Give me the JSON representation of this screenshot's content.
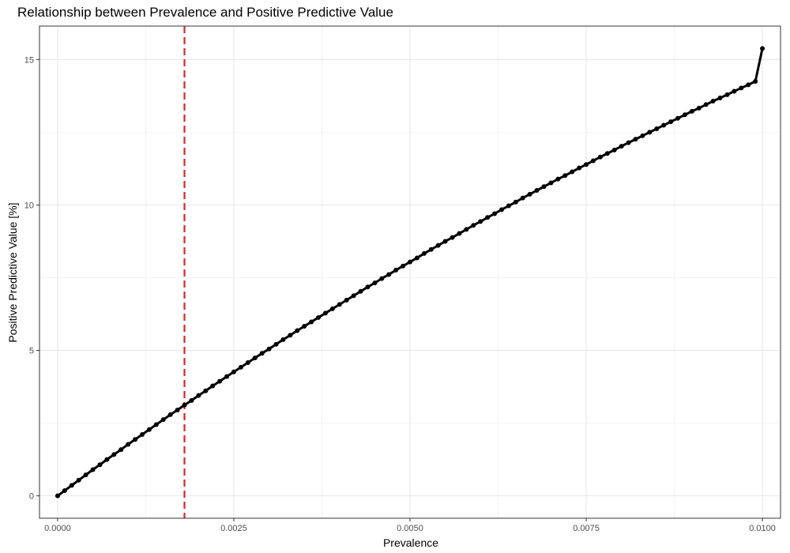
{
  "chart_data": {
    "type": "line",
    "title": "Relationship between Prevalence and Positive Predictive Value",
    "xlabel": "Prevalence",
    "ylabel": "Positive Predictive Value [%]",
    "xlim": [
      0,
      0.01
    ],
    "ylim": [
      0,
      15.4
    ],
    "x_ticks": [
      0,
      0.0025,
      0.005,
      0.0075,
      0.01
    ],
    "x_tick_labels": [
      "0.0000",
      "0.0025",
      "0.0050",
      "0.0075",
      "0.0100"
    ],
    "y_ticks": [
      0,
      5,
      10,
      15
    ],
    "y_tick_labels": [
      "0",
      "5",
      "10",
      "15"
    ],
    "grid": true,
    "theme": "black-and-white",
    "series": [
      {
        "color": "#000000",
        "markers": true,
        "points": [
          [
            0.0,
            0.0
          ],
          [
            0.0001,
            0.18
          ],
          [
            0.0002,
            0.36
          ],
          [
            0.0003,
            0.54
          ],
          [
            0.0004,
            0.72
          ],
          [
            0.0005,
            0.9
          ],
          [
            0.0006,
            1.07
          ],
          [
            0.0007,
            1.25
          ],
          [
            0.0008,
            1.42
          ],
          [
            0.0009,
            1.59
          ],
          [
            0.001,
            1.77
          ],
          [
            0.0011,
            1.94
          ],
          [
            0.0012,
            2.11
          ],
          [
            0.0013,
            2.28
          ],
          [
            0.0014,
            2.45
          ],
          [
            0.0015,
            2.62
          ],
          [
            0.0016,
            2.79
          ],
          [
            0.0017,
            2.95
          ],
          [
            0.0018,
            3.12
          ],
          [
            0.0019,
            3.28
          ],
          [
            0.002,
            3.45
          ],
          [
            0.0021,
            3.61
          ],
          [
            0.0022,
            3.78
          ],
          [
            0.0023,
            3.94
          ],
          [
            0.0024,
            4.1
          ],
          [
            0.0025,
            4.26
          ],
          [
            0.0026,
            4.42
          ],
          [
            0.0027,
            4.58
          ],
          [
            0.0028,
            4.74
          ],
          [
            0.0029,
            4.9
          ],
          [
            0.003,
            5.05
          ],
          [
            0.0031,
            5.21
          ],
          [
            0.0032,
            5.37
          ],
          [
            0.0033,
            5.52
          ],
          [
            0.0034,
            5.68
          ],
          [
            0.0035,
            5.83
          ],
          [
            0.0036,
            5.98
          ],
          [
            0.0037,
            6.13
          ],
          [
            0.0038,
            6.28
          ],
          [
            0.0039,
            6.43
          ],
          [
            0.004,
            6.58
          ],
          [
            0.0041,
            6.73
          ],
          [
            0.0042,
            6.88
          ],
          [
            0.0043,
            7.03
          ],
          [
            0.0044,
            7.18
          ],
          [
            0.0045,
            7.32
          ],
          [
            0.0046,
            7.47
          ],
          [
            0.0047,
            7.61
          ],
          [
            0.0048,
            7.76
          ],
          [
            0.0049,
            7.9
          ],
          [
            0.005,
            8.04
          ],
          [
            0.0051,
            8.18
          ],
          [
            0.0052,
            8.33
          ],
          [
            0.0053,
            8.47
          ],
          [
            0.0054,
            8.61
          ],
          [
            0.0055,
            8.75
          ],
          [
            0.0056,
            8.88
          ],
          [
            0.0057,
            9.02
          ],
          [
            0.0058,
            9.16
          ],
          [
            0.0059,
            9.3
          ],
          [
            0.006,
            9.43
          ],
          [
            0.0061,
            9.57
          ],
          [
            0.0062,
            9.7
          ],
          [
            0.0063,
            9.84
          ],
          [
            0.0064,
            9.97
          ],
          [
            0.0065,
            10.1
          ],
          [
            0.0066,
            10.24
          ],
          [
            0.0067,
            10.37
          ],
          [
            0.0068,
            10.5
          ],
          [
            0.0069,
            10.63
          ],
          [
            0.007,
            10.76
          ],
          [
            0.0071,
            10.89
          ],
          [
            0.0072,
            11.01
          ],
          [
            0.0073,
            11.14
          ],
          [
            0.0074,
            11.27
          ],
          [
            0.0075,
            11.39
          ],
          [
            0.0076,
            11.52
          ],
          [
            0.0077,
            11.65
          ],
          [
            0.0078,
            11.77
          ],
          [
            0.0079,
            11.89
          ],
          [
            0.008,
            12.02
          ],
          [
            0.0081,
            12.14
          ],
          [
            0.0082,
            12.26
          ],
          [
            0.0083,
            12.38
          ],
          [
            0.0084,
            12.5
          ],
          [
            0.0085,
            12.62
          ],
          [
            0.0086,
            12.74
          ],
          [
            0.0087,
            12.86
          ],
          [
            0.0088,
            12.98
          ],
          [
            0.0089,
            13.1
          ],
          [
            0.009,
            13.22
          ],
          [
            0.0091,
            13.33
          ],
          [
            0.0092,
            13.45
          ],
          [
            0.0093,
            13.57
          ],
          [
            0.0094,
            13.68
          ],
          [
            0.0095,
            13.79
          ],
          [
            0.0096,
            13.91
          ],
          [
            0.0097,
            14.02
          ],
          [
            0.0098,
            14.13
          ],
          [
            0.0099,
            14.25
          ],
          [
            0.01,
            15.38
          ]
        ]
      }
    ],
    "reference_line": {
      "orientation": "vertical",
      "x": 0.0018,
      "color": "#d62728",
      "style": "dashed"
    }
  }
}
